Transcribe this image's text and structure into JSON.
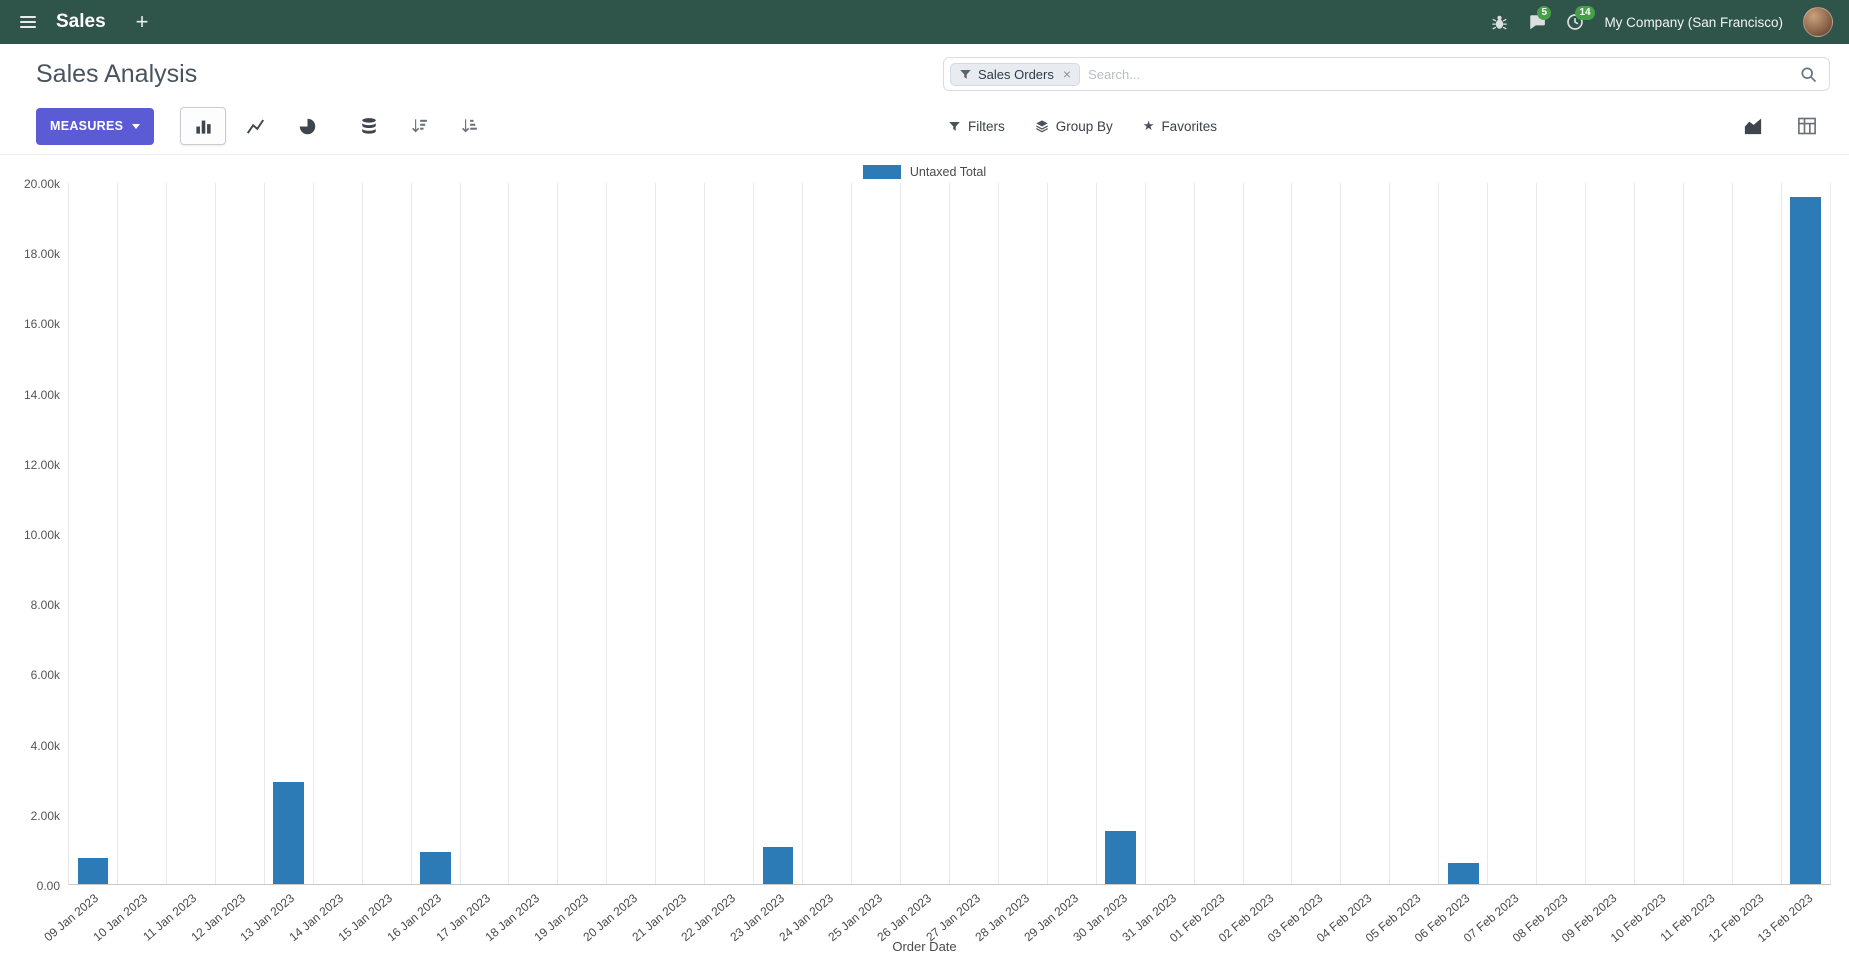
{
  "colors": {
    "navbar_bg": "#2f544a",
    "primary_button": "#5b5bd6",
    "badge_green": "#46a049"
  },
  "navbar": {
    "app_name": "Sales",
    "plus_label": "+",
    "company": "My Company (San Francisco)",
    "messages_badge": "5",
    "activities_badge": "14"
  },
  "control_panel": {
    "title": "Sales Analysis",
    "search": {
      "facet_label": "Sales Orders",
      "placeholder": "Search...",
      "remove_glyph": "×"
    },
    "measures_label": "MEASURES",
    "filters_label": "Filters",
    "group_by_label": "Group By",
    "favorites_label": "Favorites",
    "favorites_star_glyph": "★"
  },
  "chart_data": {
    "type": "bar",
    "title": "",
    "legend": "Untaxed Total",
    "legend_position": "top-center",
    "series_color": "#2c7bb6",
    "xlabel": "Order Date",
    "ylabel": "",
    "ylim": [
      0,
      20000
    ],
    "ytick_labels": [
      "0.00",
      "2.00k",
      "4.00k",
      "6.00k",
      "8.00k",
      "10.00k",
      "12.00k",
      "14.00k",
      "16.00k",
      "18.00k",
      "20.00k"
    ],
    "grid": "vertical",
    "categories": [
      "09 Jan 2023",
      "10 Jan 2023",
      "11 Jan 2023",
      "12 Jan 2023",
      "13 Jan 2023",
      "14 Jan 2023",
      "15 Jan 2023",
      "16 Jan 2023",
      "17 Jan 2023",
      "18 Jan 2023",
      "19 Jan 2023",
      "20 Jan 2023",
      "21 Jan 2023",
      "22 Jan 2023",
      "23 Jan 2023",
      "24 Jan 2023",
      "25 Jan 2023",
      "26 Jan 2023",
      "27 Jan 2023",
      "28 Jan 2023",
      "29 Jan 2023",
      "30 Jan 2023",
      "31 Jan 2023",
      "01 Feb 2023",
      "02 Feb 2023",
      "03 Feb 2023",
      "04 Feb 2023",
      "05 Feb 2023",
      "06 Feb 2023",
      "07 Feb 2023",
      "08 Feb 2023",
      "09 Feb 2023",
      "10 Feb 2023",
      "11 Feb 2023",
      "12 Feb 2023",
      "13 Feb 2023"
    ],
    "values": [
      750,
      0,
      0,
      0,
      2900,
      0,
      0,
      900,
      0,
      0,
      0,
      0,
      0,
      0,
      1050,
      0,
      0,
      0,
      0,
      0,
      0,
      1500,
      0,
      0,
      0,
      0,
      0,
      0,
      600,
      0,
      0,
      0,
      0,
      0,
      0,
      19600
    ]
  }
}
